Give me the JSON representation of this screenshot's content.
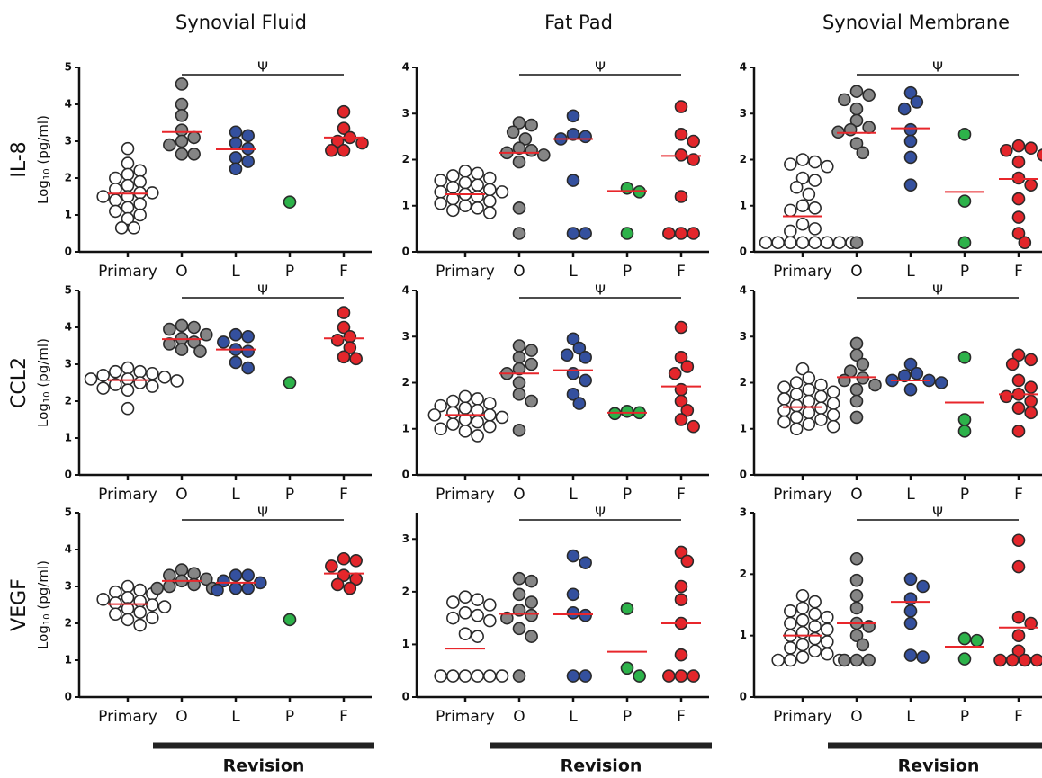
{
  "chart_data": [
    {
      "type": "scatter",
      "title": "Synovial Fluid",
      "ylabel": "IL-8",
      "yunit": "Log",
      "yunit_sub": "10",
      "yunit_rest": " (pg/ml)",
      "annotation": "Ψ",
      "categories": [
        "Primary",
        "O",
        "L",
        "P",
        "F"
      ],
      "colors": [
        "#ffffff",
        "#858585",
        "#34509e",
        "#2db24a",
        "#e3262b"
      ],
      "median_color": "#e8262b",
      "ylim": [
        0,
        5
      ],
      "yticks": [
        0,
        1,
        2,
        3,
        4,
        5
      ],
      "values": [
        [
          2.8,
          2.4,
          2.2,
          2.1,
          2.0,
          1.9,
          1.8,
          1.7,
          1.6,
          1.6,
          1.5,
          1.5,
          1.4,
          1.3,
          1.2,
          1.1,
          1.0,
          0.9,
          0.65,
          0.65
        ],
        [
          4.55,
          4.0,
          3.7,
          3.3,
          3.1,
          3.0,
          2.9,
          2.65,
          2.65
        ],
        [
          3.25,
          3.15,
          2.95,
          2.8,
          2.55,
          2.45,
          2.25
        ],
        [
          1.35
        ],
        [
          3.8,
          3.35,
          3.1,
          3.0,
          2.95,
          2.75,
          2.75
        ]
      ],
      "medians": [
        1.58,
        3.25,
        2.78,
        null,
        3.1
      ]
    },
    {
      "type": "scatter",
      "title": "Fat Pad",
      "annotation": "Ψ",
      "categories": [
        "Primary",
        "O",
        "L",
        "P",
        "F"
      ],
      "colors": [
        "#ffffff",
        "#858585",
        "#34509e",
        "#2db24a",
        "#e3262b"
      ],
      "median_color": "#e8262b",
      "ylim": [
        0,
        4
      ],
      "yticks": [
        0,
        1,
        2,
        3,
        4
      ],
      "values": [
        [
          1.75,
          1.7,
          1.65,
          1.6,
          1.55,
          1.5,
          1.45,
          1.4,
          1.35,
          1.3,
          1.3,
          1.25,
          1.2,
          1.15,
          1.1,
          1.05,
          1.0,
          0.95,
          0.9,
          0.85
        ],
        [
          2.8,
          2.75,
          2.6,
          2.45,
          2.25,
          2.2,
          2.15,
          2.1,
          1.95,
          0.95,
          0.4
        ],
        [
          2.95,
          2.55,
          2.5,
          2.45,
          1.55,
          0.4,
          0.4
        ],
        [
          1.38,
          1.3,
          0.4
        ],
        [
          3.15,
          2.55,
          2.4,
          2.1,
          2.0,
          1.2,
          0.4,
          0.4,
          0.4
        ]
      ],
      "medians": [
        1.25,
        2.15,
        2.45,
        1.32,
        2.08
      ]
    },
    {
      "type": "scatter",
      "title": "Synovial Membrane",
      "annotation": "Ψ",
      "categories": [
        "Primary",
        "O",
        "L",
        "P",
        "F"
      ],
      "colors": [
        "#ffffff",
        "#858585",
        "#34509e",
        "#2db24a",
        "#e3262b"
      ],
      "median_color": "#e8262b",
      "ylim": [
        0,
        4
      ],
      "yticks": [
        0,
        1,
        2,
        3,
        4
      ],
      "values": [
        [
          2.0,
          1.95,
          1.9,
          1.85,
          1.6,
          1.55,
          1.4,
          1.25,
          1.0,
          0.95,
          0.9,
          0.6,
          0.5,
          0.45,
          0.2,
          0.2,
          0.2,
          0.2,
          0.2,
          0.2,
          0.2,
          0.2
        ],
        [
          3.48,
          3.4,
          3.3,
          3.1,
          2.85,
          2.7,
          2.65,
          2.6,
          2.35,
          2.15,
          0.2
        ],
        [
          3.45,
          3.25,
          3.1,
          2.65,
          2.4,
          2.05,
          1.45
        ],
        [
          2.55,
          1.1,
          0.2
        ],
        [
          2.3,
          2.25,
          2.2,
          2.1,
          1.95,
          1.6,
          1.45,
          1.15,
          0.75,
          0.4,
          0.2
        ]
      ],
      "medians": [
        0.77,
        2.58,
        2.68,
        1.3,
        1.58
      ]
    },
    {
      "type": "scatter",
      "ylabel": "CCL2",
      "yunit": "Log",
      "yunit_sub": "10",
      "yunit_rest": " (pg/ml)",
      "annotation": "Ψ",
      "categories": [
        "Primary",
        "O",
        "L",
        "P",
        "F"
      ],
      "colors": [
        "#ffffff",
        "#858585",
        "#34509e",
        "#2db24a",
        "#e3262b"
      ],
      "median_color": "#e8262b",
      "ylim": [
        0,
        5
      ],
      "yticks": [
        0,
        1,
        2,
        3,
        4,
        5
      ],
      "values": [
        [
          2.9,
          2.8,
          2.8,
          2.75,
          2.7,
          2.65,
          2.6,
          2.6,
          2.55,
          2.5,
          2.45,
          2.4,
          2.35,
          2.3,
          1.8
        ],
        [
          4.05,
          4.0,
          3.95,
          3.8,
          3.7,
          3.6,
          3.55,
          3.4,
          3.35
        ],
        [
          3.8,
          3.75,
          3.6,
          3.4,
          3.35,
          3.05,
          2.9
        ],
        [
          2.5
        ],
        [
          4.4,
          4.0,
          3.75,
          3.65,
          3.45,
          3.2,
          3.15
        ]
      ],
      "medians": [
        2.57,
        3.68,
        3.4,
        null,
        3.7
      ]
    },
    {
      "type": "scatter",
      "annotation": "Ψ",
      "categories": [
        "Primary",
        "O",
        "L",
        "P",
        "F"
      ],
      "colors": [
        "#ffffff",
        "#858585",
        "#34509e",
        "#2db24a",
        "#e3262b"
      ],
      "median_color": "#e8262b",
      "ylim": [
        0,
        4
      ],
      "yticks": [
        0,
        1,
        2,
        3,
        4
      ],
      "values": [
        [
          1.7,
          1.65,
          1.6,
          1.55,
          1.5,
          1.45,
          1.4,
          1.35,
          1.3,
          1.3,
          1.25,
          1.2,
          1.15,
          1.1,
          1.05,
          1.0,
          0.95,
          0.85
        ],
        [
          2.8,
          2.7,
          2.55,
          2.4,
          2.3,
          2.2,
          2.0,
          1.75,
          1.6,
          0.97
        ],
        [
          2.95,
          2.75,
          2.6,
          2.55,
          2.2,
          2.05,
          1.75,
          1.55
        ],
        [
          1.38,
          1.35,
          1.33
        ],
        [
          3.2,
          2.55,
          2.35,
          2.2,
          1.85,
          1.6,
          1.4,
          1.2,
          1.05
        ]
      ],
      "medians": [
        1.3,
        2.2,
        2.27,
        1.35,
        1.92
      ]
    },
    {
      "type": "scatter",
      "annotation": "Ψ",
      "categories": [
        "Primary",
        "O",
        "L",
        "P",
        "F"
      ],
      "colors": [
        "#ffffff",
        "#858585",
        "#34509e",
        "#2db24a",
        "#e3262b"
      ],
      "median_color": "#e8262b",
      "ylim": [
        0,
        4
      ],
      "yticks": [
        0,
        1,
        2,
        3,
        4
      ],
      "values": [
        [
          2.3,
          2.1,
          2.0,
          1.95,
          1.9,
          1.85,
          1.8,
          1.75,
          1.7,
          1.65,
          1.6,
          1.55,
          1.5,
          1.45,
          1.4,
          1.35,
          1.3,
          1.25,
          1.2,
          1.15,
          1.1,
          1.05,
          1.0
        ],
        [
          2.85,
          2.6,
          2.4,
          2.25,
          2.1,
          2.05,
          1.95,
          1.85,
          1.6,
          1.25
        ],
        [
          2.4,
          2.2,
          2.15,
          2.05,
          2.05,
          2.0,
          1.85
        ],
        [
          2.55,
          1.2,
          0.95
        ],
        [
          2.6,
          2.5,
          2.4,
          2.05,
          1.9,
          1.75,
          1.7,
          1.6,
          1.45,
          1.35,
          0.95
        ]
      ],
      "medians": [
        1.47,
        2.12,
        2.05,
        1.57,
        1.75
      ]
    },
    {
      "type": "scatter",
      "ylabel": "VEGF",
      "yunit": "Log",
      "yunit_sub": "10",
      "yunit_rest": " (pg/ml)",
      "annotation": "Ψ",
      "group_label": "Revision",
      "categories": [
        "Primary",
        "O",
        "L",
        "P",
        "F"
      ],
      "colors": [
        "#ffffff",
        "#858585",
        "#34509e",
        "#2db24a",
        "#e3262b"
      ],
      "median_color": "#e8262b",
      "ylim": [
        0,
        5
      ],
      "yticks": [
        0,
        1,
        2,
        3,
        4,
        5
      ],
      "values": [
        [
          3.0,
          2.9,
          2.85,
          2.8,
          2.7,
          2.65,
          2.6,
          2.55,
          2.5,
          2.45,
          2.4,
          2.3,
          2.25,
          2.15,
          2.1,
          1.95
        ],
        [
          3.45,
          3.35,
          3.3,
          3.2,
          3.15,
          3.05,
          3.0,
          2.95,
          2.95
        ],
        [
          3.3,
          3.3,
          3.15,
          3.1,
          2.95,
          2.95,
          2.9
        ],
        [
          2.1
        ],
        [
          3.75,
          3.7,
          3.55,
          3.3,
          3.2,
          3.05,
          2.95
        ]
      ],
      "medians": [
        2.52,
        3.15,
        3.1,
        null,
        3.35
      ]
    },
    {
      "type": "scatter",
      "annotation": "Ψ",
      "group_label": "Revision",
      "categories": [
        "Primary",
        "O",
        "L",
        "P",
        "F"
      ],
      "colors": [
        "#ffffff",
        "#858585",
        "#34509e",
        "#2db24a",
        "#e3262b"
      ],
      "median_color": "#e8262b",
      "ylim": [
        0,
        3.5
      ],
      "yticks": [
        0,
        1,
        2,
        3
      ],
      "values": [
        [
          1.9,
          1.85,
          1.8,
          1.75,
          1.6,
          1.55,
          1.5,
          1.45,
          1.2,
          1.15,
          0.4,
          0.4,
          0.4,
          0.4,
          0.4,
          0.4
        ],
        [
          2.25,
          2.2,
          1.95,
          1.8,
          1.65,
          1.55,
          1.5,
          1.3,
          1.15,
          0.4
        ],
        [
          2.68,
          2.55,
          1.95,
          1.6,
          1.55,
          0.4,
          0.4
        ],
        [
          1.68,
          0.55,
          0.4
        ],
        [
          2.75,
          2.58,
          2.1,
          1.85,
          1.4,
          0.8,
          0.4,
          0.4,
          0.4
        ]
      ],
      "medians": [
        0.92,
        1.58,
        1.57,
        0.86,
        1.4
      ]
    },
    {
      "type": "scatter",
      "annotation": "Ψ",
      "group_label": "Revision",
      "categories": [
        "Primary",
        "O",
        "L",
        "P",
        "F"
      ],
      "colors": [
        "#ffffff",
        "#858585",
        "#34509e",
        "#2db24a",
        "#e3262b"
      ],
      "median_color": "#e8262b",
      "ylim": [
        0,
        3
      ],
      "yticks": [
        0,
        1,
        2,
        3
      ],
      "values": [
        [
          1.65,
          1.55,
          1.45,
          1.4,
          1.35,
          1.3,
          1.25,
          1.2,
          1.15,
          1.1,
          1.05,
          1.0,
          0.95,
          0.9,
          0.85,
          0.8,
          0.75,
          0.7,
          0.65,
          0.6,
          0.6,
          0.6
        ],
        [
          2.25,
          1.9,
          1.65,
          1.45,
          1.2,
          1.15,
          1.0,
          0.85,
          0.6,
          0.6,
          0.6
        ],
        [
          1.92,
          1.8,
          1.6,
          1.4,
          1.2,
          0.68,
          0.65
        ],
        [
          0.95,
          0.92,
          0.62
        ],
        [
          2.55,
          2.12,
          1.3,
          1.2,
          1.0,
          0.75,
          0.6,
          0.6,
          0.6,
          0.6
        ]
      ],
      "medians": [
        1.0,
        1.2,
        1.55,
        0.82,
        1.13
      ]
    }
  ]
}
